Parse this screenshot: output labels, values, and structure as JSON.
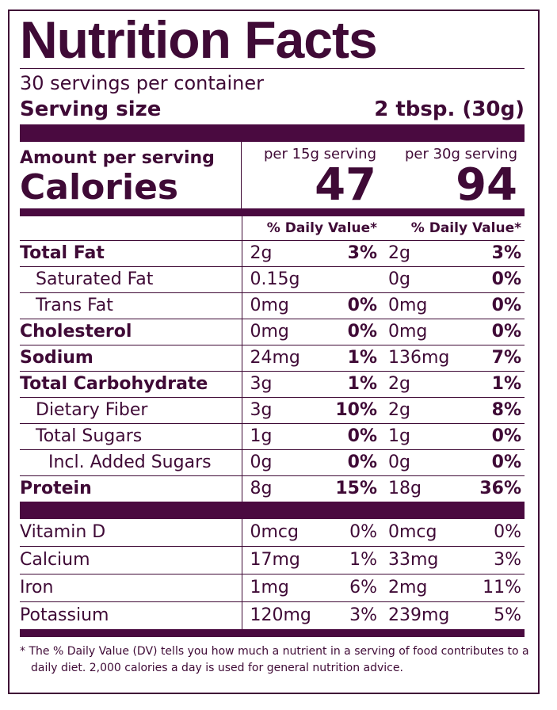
{
  "title": "Nutrition Facts",
  "servings_per_container": "30 servings per container",
  "serving_size": {
    "label": "Serving size",
    "value": "2 tbsp. (30g)"
  },
  "amount_per_serving": "Amount per serving",
  "calories": {
    "label": "Calories",
    "per_15g": {
      "header": "per 15g serving",
      "value": "47"
    },
    "per_30g": {
      "header": "per 30g serving",
      "value": "94"
    }
  },
  "daily_value_headers": [
    "% Daily Value*",
    "% Daily Value*"
  ],
  "nutrients": [
    {
      "name": "Total Fat",
      "per_15g": [
        "2g",
        "3%"
      ],
      "per_30g": [
        "2g",
        "3%"
      ]
    },
    {
      "name": "Saturated Fat",
      "per_15g": [
        "0.15g"
      ],
      "per_30g": [
        "0g",
        "0%"
      ]
    },
    {
      "name": "Trans Fat",
      "per_15g": [
        "0mg",
        "0%"
      ],
      "per_30g": [
        "0mg",
        "0%"
      ]
    },
    {
      "name": "Cholesterol",
      "per_15g": [
        "0mg",
        "0%"
      ],
      "per_30g": [
        "0mg",
        "0%"
      ]
    },
    {
      "name": "Sodium",
      "per_15g": [
        "24mg",
        "1%"
      ],
      "per_30g": [
        "136mg",
        "7%"
      ]
    },
    {
      "name": "Total Carbohydrate",
      "per_15g": [
        "3g",
        "1%"
      ],
      "per_30g": [
        "2g",
        "1%"
      ]
    },
    {
      "name": "Dietary Fiber",
      "per_15g": [
        "3g",
        "10%"
      ],
      "per_30g": [
        "2g",
        "8%"
      ]
    },
    {
      "name": "Total Sugars",
      "per_15g": [
        "1g",
        "0%"
      ],
      "per_30g": [
        "1g",
        "0%"
      ]
    },
    {
      "name": "Incl. Added Sugars",
      "per_15g": [
        "0g",
        "0%"
      ],
      "per_30g": [
        "0g",
        "0%"
      ]
    },
    {
      "name": "Protein",
      "per_15g": [
        "8g",
        "15%"
      ],
      "per_30g": [
        "18g",
        "36%"
      ]
    }
  ],
  "vitamins_minerals": [
    {
      "name": "Vitamin D",
      "per_15g": [
        "0mcg",
        "0%"
      ],
      "per_30g": [
        "0mcg",
        "0%"
      ]
    },
    {
      "name": "Calcium",
      "per_15g": [
        "17mg",
        "1%"
      ],
      "per_30g": [
        "33mg",
        "3%"
      ]
    },
    {
      "name": "Iron",
      "per_15g": [
        "1mg",
        "6%"
      ],
      "per_30g": [
        "2mg",
        "11%"
      ]
    },
    {
      "name": "Potassium",
      "per_15g": [
        "120mg",
        "3%"
      ],
      "per_30g": [
        "239mg",
        "5%"
      ]
    }
  ],
  "footnote": "* The % Daily Value (DV) tells you how much a nutrient in a serving of food contributes to a daily diet. 2,000 calories a day is used for general nutrition advice."
}
